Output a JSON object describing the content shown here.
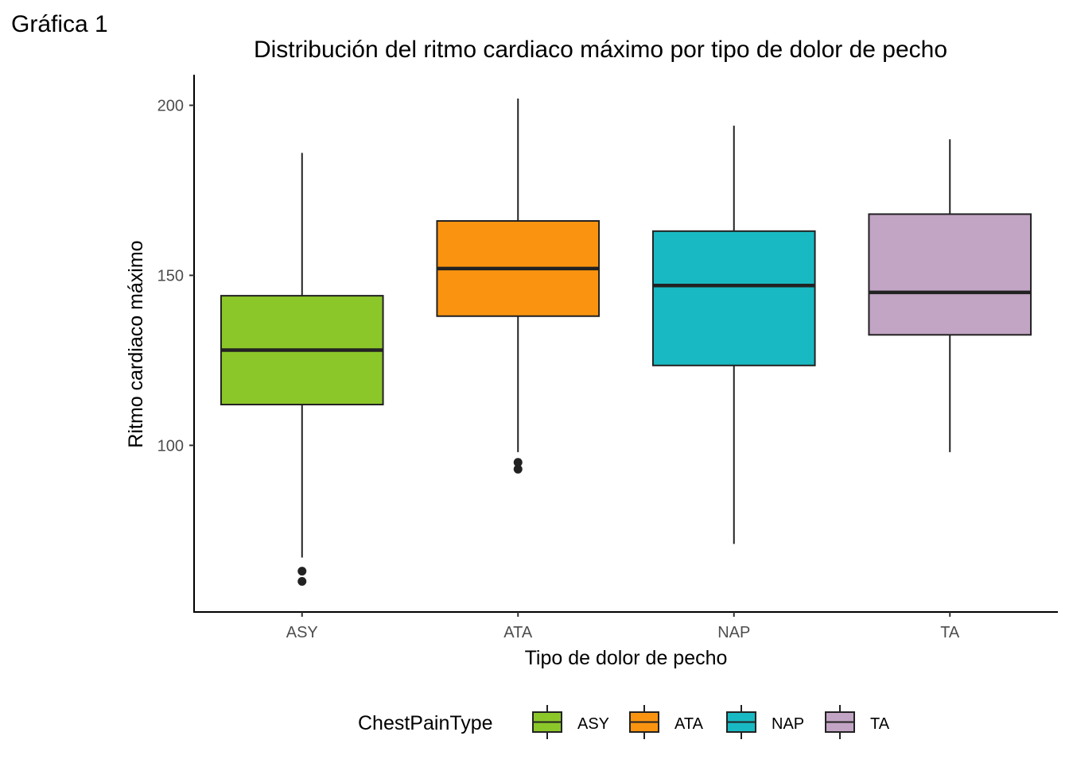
{
  "figure_tag": "Gráfica 1",
  "chart_data": {
    "type": "boxplot",
    "title": "Distribución del ritmo cardiaco máximo por tipo de dolor de pecho",
    "xlabel": "Tipo de dolor de pecho",
    "ylabel": "Ritmo cardiaco máximo",
    "ylim": [
      51,
      209
    ],
    "yticks": [
      100,
      150,
      200
    ],
    "categories": [
      "ASY",
      "ATA",
      "NAP",
      "TA"
    ],
    "boxes": [
      {
        "category": "ASY",
        "whisker_low": 67,
        "q1": 112,
        "median": 128,
        "q3": 144,
        "whisker_high": 186,
        "outliers": [
          60,
          63
        ]
      },
      {
        "category": "ATA",
        "whisker_low": 98,
        "q1": 138,
        "median": 152,
        "q3": 166,
        "whisker_high": 202,
        "outliers": [
          93,
          95
        ]
      },
      {
        "category": "NAP",
        "whisker_low": 71,
        "q1": 123.5,
        "median": 147,
        "q3": 163,
        "whisker_high": 194,
        "outliers": []
      },
      {
        "category": "TA",
        "whisker_low": 98,
        "q1": 132.5,
        "median": 145,
        "q3": 168,
        "whisker_high": 190,
        "outliers": []
      }
    ],
    "colors": {
      "ASY": "#8CC72A",
      "ATA": "#FA9410",
      "NAP": "#19B9C3",
      "TA": "#C2A4C4"
    },
    "legend": {
      "title": "ChestPainType",
      "position": "bottom",
      "entries": [
        "ASY",
        "ATA",
        "NAP",
        "TA"
      ]
    },
    "grid": false
  }
}
